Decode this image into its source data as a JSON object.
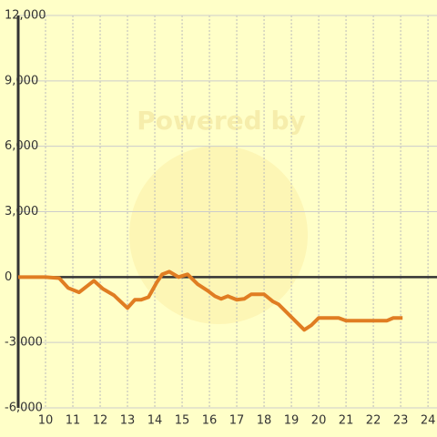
{
  "chart_data": {
    "type": "line",
    "watermark": "Powered by",
    "x": [
      9,
      10,
      10.5,
      10.83,
      11.23,
      11.77,
      12.1,
      12.5,
      13,
      13.27,
      13.5,
      13.77,
      14.07,
      14.27,
      14.53,
      14.87,
      15.2,
      15.57,
      15.93,
      16.2,
      16.43,
      16.67,
      17,
      17.27,
      17.53,
      18,
      18.33,
      18.53,
      19.47,
      19.73,
      20,
      20.73,
      21,
      22.5,
      22.73,
      23.07
    ],
    "series": [
      {
        "color": "#e07d22",
        "values": [
          0,
          0,
          -50,
          -500,
          -700,
          -170,
          -540,
          -830,
          -1420,
          -1040,
          -1040,
          -920,
          -250,
          125,
          250,
          0,
          125,
          -330,
          -620,
          -875,
          -1000,
          -875,
          -1040,
          -1000,
          -790,
          -790,
          -1125,
          -1250,
          -2420,
          -2210,
          -1875,
          -1875,
          -2000,
          -2000,
          -1875,
          -1875
        ]
      }
    ],
    "xlim": [
      9,
      24.33
    ],
    "xticks": [
      10,
      11,
      12,
      13,
      14,
      15,
      16,
      17,
      18,
      19,
      20,
      21,
      22,
      23,
      24
    ],
    "ylim": [
      -6000,
      12000
    ],
    "yticks": [
      {
        "value": -6000,
        "label": "-6,000"
      },
      {
        "value": -3000,
        "label": "-3,000"
      },
      0,
      {
        "value": 3000,
        "label": "3,000"
      },
      {
        "value": 6000,
        "label": "6,000"
      },
      {
        "value": 9000,
        "label": "9,000"
      },
      {
        "value": 12000,
        "label": "12,000"
      }
    ],
    "grid": true
  }
}
